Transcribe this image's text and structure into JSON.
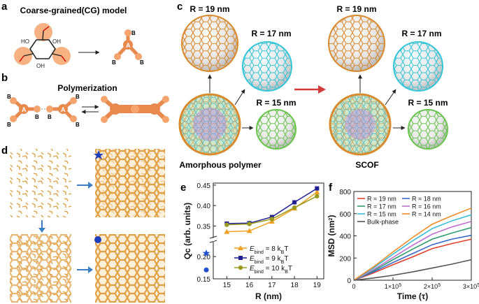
{
  "panels": {
    "a": {
      "letter": "a",
      "title": "Coarse-grained(CG) model",
      "atoms": {
        "ho": "HO",
        "oh": "OH",
        "cg_center": "A",
        "cg_arm": "B"
      }
    },
    "b": {
      "letter": "b",
      "title": "Polymerization",
      "cg_center": "A",
      "cg_arm": "B"
    },
    "c": {
      "letter": "c",
      "radii": {
        "r19": "R = 19 nm",
        "r17": "R = 17 nm",
        "r15": "R = 15 nm"
      },
      "left_caption": "Amorphous polymer",
      "right_caption": "SCOF"
    },
    "d": {
      "letter": "d"
    },
    "e": {
      "letter": "e"
    },
    "f": {
      "letter": "f"
    }
  },
  "colors": {
    "orange": "#f0a15a",
    "orange_dark": "#c8701f",
    "cyan": "#35c6d8",
    "green": "#69c44c",
    "red_arrow": "#d23c3c",
    "blue_arrow": "#3e7fc4"
  },
  "chart_data": [
    {
      "panel": "e",
      "type": "line",
      "xlabel": "R (nm)",
      "ylabel": "Qc (arb. units)",
      "x": [
        15,
        16,
        17,
        18,
        19
      ],
      "xticks": [
        "15",
        "16",
        "17",
        "18",
        "19"
      ],
      "yticks_upper": [
        "0.35",
        "0.40",
        "0.45"
      ],
      "yticks_lower": [
        "0.15",
        "0.20"
      ],
      "y_upper_range": [
        0.325,
        0.455
      ],
      "y_lower_range": [
        0.15,
        0.23
      ],
      "series": [
        {
          "name_prefix": "E",
          "name_sub": "bind",
          "name_suffix": " = 8 k",
          "name_sub2": "B",
          "name_end": "T",
          "color": "#f0a020",
          "marker": "triangle",
          "values": [
            0.336,
            0.338,
            0.361,
            0.393,
            0.433
          ]
        },
        {
          "name_prefix": "E",
          "name_sub": "bind",
          "name_suffix": " = 9 k",
          "name_sub2": "B",
          "name_end": "T",
          "color": "#1f1f8f",
          "marker": "square",
          "values": [
            0.356,
            0.357,
            0.372,
            0.408,
            0.442
          ]
        },
        {
          "name_prefix": "E",
          "name_sub": "bind",
          "name_suffix": " = 10 k",
          "name_sub2": "B",
          "name_end": "T",
          "color": "#9a9a20",
          "marker": "circle",
          "values": [
            0.353,
            0.355,
            0.367,
            0.395,
            0.423
          ]
        }
      ],
      "outside_points": [
        {
          "shape": "star",
          "value": 0.208,
          "color": "#1f4fd0"
        },
        {
          "shape": "circle",
          "value": 0.17,
          "color": "#1f4fd0"
        }
      ]
    },
    {
      "panel": "f",
      "type": "line",
      "xlabel": "Time (τ)",
      "ylabel_base": "MSD (nm",
      "ylabel_sup": "2",
      "ylabel_end": ")",
      "ylim": [
        0,
        800
      ],
      "xlim": [
        0,
        300000
      ],
      "yticks": [
        "0",
        "200",
        "400",
        "600",
        "800"
      ],
      "xticks": [
        {
          "base": "0",
          "exp": ""
        },
        {
          "base": "1×10",
          "exp": "5"
        },
        {
          "base": "2×10",
          "exp": "5"
        },
        {
          "base": "3×10",
          "exp": "5"
        }
      ],
      "x": [
        0,
        50000,
        100000,
        150000,
        200000,
        250000,
        300000
      ],
      "series": [
        {
          "name": "R = 19 nm",
          "color": "#e0402a",
          "values": [
            0,
            65,
            140,
            210,
            285,
            330,
            370
          ]
        },
        {
          "name": "R = 18 nm",
          "color": "#3a67c8",
          "values": [
            0,
            75,
            160,
            240,
            320,
            370,
            405
          ]
        },
        {
          "name": "R = 17 nm",
          "color": "#2f9c6c",
          "values": [
            0,
            85,
            185,
            280,
            370,
            425,
            475
          ]
        },
        {
          "name": "R = 16 nm",
          "color": "#c070d0",
          "values": [
            0,
            95,
            205,
            315,
            415,
            480,
            530
          ]
        },
        {
          "name": "R = 15 nm",
          "color": "#38bcd8",
          "values": [
            0,
            110,
            235,
            355,
            465,
            535,
            590
          ]
        },
        {
          "name": "R = 14 nm",
          "color": "#f08a24",
          "values": [
            0,
            120,
            255,
            385,
            505,
            580,
            650
          ]
        },
        {
          "name": "Bulk-phase",
          "color": "#555555",
          "values": [
            0,
            20,
            45,
            75,
            110,
            145,
            185
          ]
        }
      ]
    }
  ]
}
